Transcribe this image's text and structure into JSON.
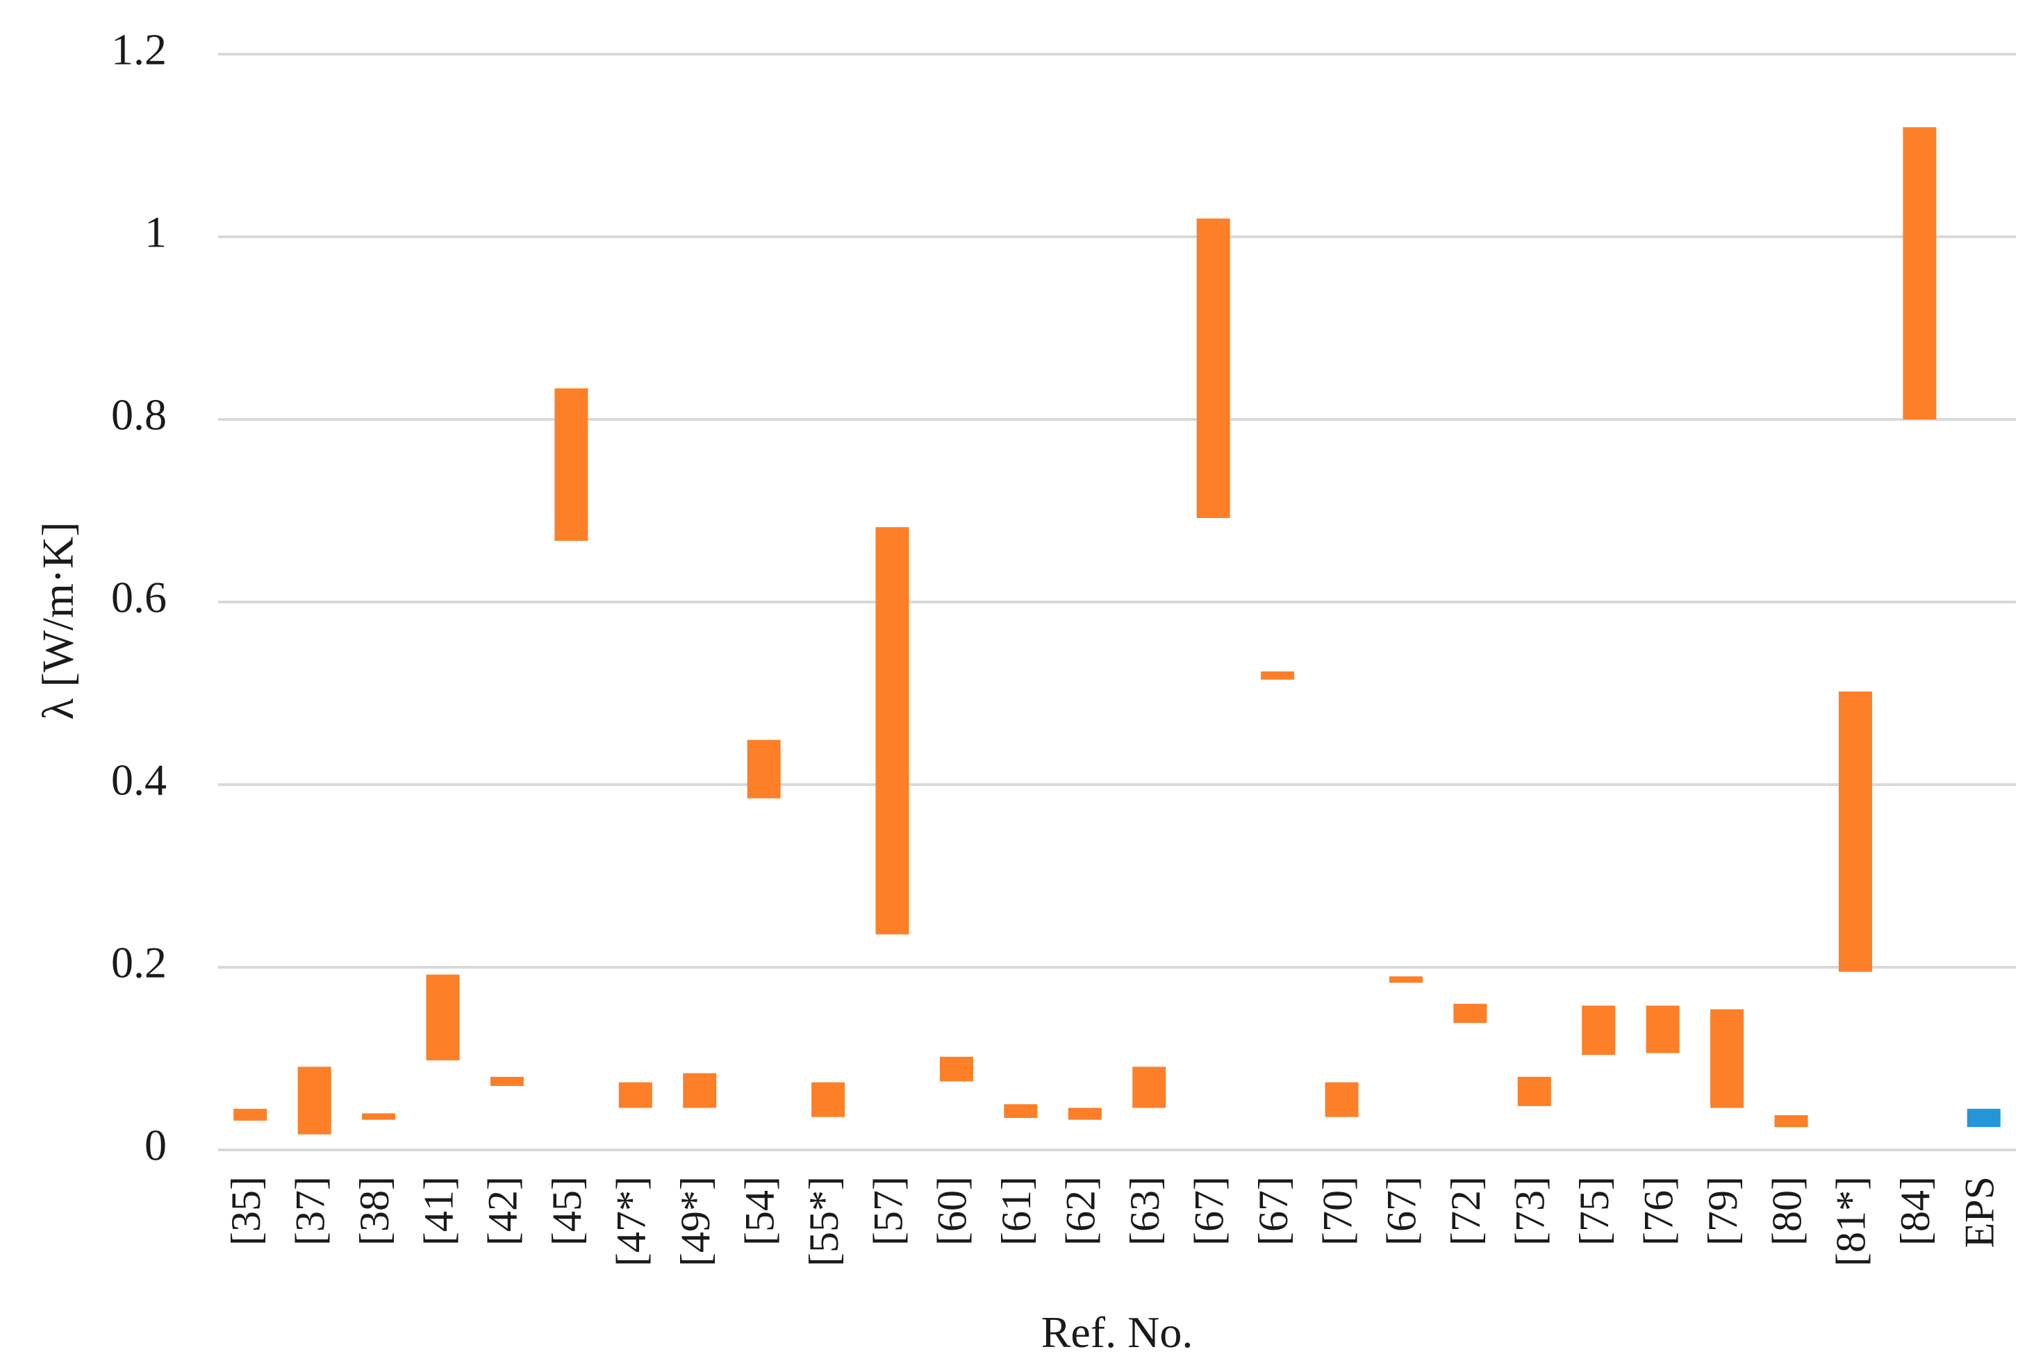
{
  "chart_data": {
    "type": "bar",
    "subtype": "floating-range",
    "title": "",
    "xlabel": "Ref. No.",
    "ylabel": "λ [W/m·K]",
    "ylim": [
      0,
      1.2
    ],
    "yticks": [
      0,
      0.2,
      0.4,
      0.6,
      0.8,
      1,
      1.2
    ],
    "ytick_labels": [
      "0",
      "0.2",
      "0.4",
      "0.6",
      "0.8",
      "1",
      "1.2"
    ],
    "grid": true,
    "legend": false,
    "colors": {
      "default": "#fd7f28",
      "reference": "#2296d8",
      "gridline": "#d9d9d9"
    },
    "categories": [
      "[35]",
      "[37]",
      "[38]",
      "[41]",
      "[42]",
      "[45]",
      "[47*]",
      "[49*]",
      "[54]",
      "[55*]",
      "[57]",
      "[60]",
      "[61]",
      "[62]",
      "[63]",
      "[67]",
      "[67]",
      "[70]",
      "[67]",
      "[72]",
      "[73]",
      "[75]",
      "[76]",
      "[79]",
      "[80]",
      "[81*]",
      "[84]",
      "EPS"
    ],
    "ranges": [
      [
        0.032,
        0.045
      ],
      [
        0.017,
        0.091
      ],
      [
        0.033,
        0.04
      ],
      [
        0.098,
        0.192
      ],
      [
        0.07,
        0.08
      ],
      [
        0.667,
        0.834
      ],
      [
        0.046,
        0.074
      ],
      [
        0.046,
        0.084
      ],
      [
        0.385,
        0.449
      ],
      [
        0.036,
        0.074
      ],
      [
        0.236,
        0.682
      ],
      [
        0.075,
        0.102
      ],
      [
        0.035,
        0.05
      ],
      [
        0.033,
        0.046
      ],
      [
        0.046,
        0.091
      ],
      [
        0.692,
        1.02
      ],
      [
        0.515,
        0.524
      ],
      [
        0.036,
        0.074
      ],
      [
        0.183,
        0.19
      ],
      [
        0.139,
        0.16
      ],
      [
        0.048,
        0.08
      ],
      [
        0.104,
        0.158
      ],
      [
        0.106,
        0.158
      ],
      [
        0.046,
        0.154
      ],
      [
        0.025,
        0.038
      ],
      [
        0.195,
        0.502
      ],
      [
        0.8,
        1.12
      ],
      [
        0.025,
        0.045
      ]
    ],
    "highlight_index": 27
  }
}
